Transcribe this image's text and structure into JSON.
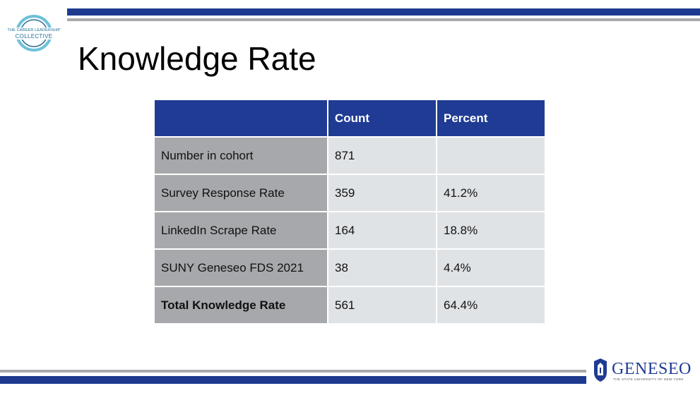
{
  "logo_top_left": {
    "line1": "THE CAREER LEADERSHIP",
    "line2": "COLLECTIVE"
  },
  "title": "Knowledge Rate",
  "table": {
    "headers": [
      "",
      "Count",
      "Percent"
    ],
    "rows": [
      {
        "label": "Number in cohort",
        "count": "871",
        "percent": ""
      },
      {
        "label": "Survey Response Rate",
        "count": "359",
        "percent": "41.2%"
      },
      {
        "label": "LinkedIn Scrape Rate",
        "count": "164",
        "percent": "18.8%"
      },
      {
        "label": "SUNY Geneseo FDS 2021",
        "count": "38",
        "percent": "4.4%"
      },
      {
        "label": "Total Knowledge Rate",
        "count": "561",
        "percent": "64.4%"
      }
    ]
  },
  "logo_bottom_right": {
    "word": "GENESEO",
    "sub": "THE STATE UNIVERSITY OF NEW YORK"
  },
  "colors": {
    "brand_blue": "#1d3a8f",
    "gray_bar": "#a7a9ac",
    "label_cell": "#a6a8ab",
    "value_cell": "#e0e3e6"
  }
}
